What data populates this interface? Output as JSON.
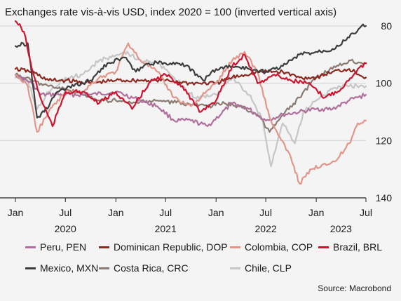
{
  "chart_data": {
    "type": "line",
    "title": "Exchanges rate vis-à-vis USD, index 2020 = 100 (inverted vertical axis)",
    "y_axis": {
      "ticks": [
        80,
        100,
        120,
        140
      ],
      "inverted": true,
      "ylim": [
        140,
        80
      ],
      "position": "right"
    },
    "x_axis": {
      "ticks": [
        {
          "date": "2020-01-01",
          "label": "Jan"
        },
        {
          "date": "2020-07-01",
          "label": "Jul"
        },
        {
          "date": "2021-01-01",
          "label": "Jan"
        },
        {
          "date": "2021-07-01",
          "label": "Jul"
        },
        {
          "date": "2022-01-01",
          "label": "Jan"
        },
        {
          "date": "2022-07-01",
          "label": "Jul"
        },
        {
          "date": "2023-01-01",
          "label": "Jan"
        },
        {
          "date": "2023-07-01",
          "label": "Jul"
        }
      ],
      "years": [
        {
          "date": "2020-07-01",
          "label": "2020"
        },
        {
          "date": "2021-07-01",
          "label": "2021"
        },
        {
          "date": "2022-07-01",
          "label": "2022"
        },
        {
          "date": "2023-04-01",
          "label": "2023"
        }
      ],
      "xlim": [
        "2020-01-01",
        "2023-07-01"
      ]
    },
    "grid": true,
    "legend_position": "bottom",
    "series": [
      {
        "name": "Peru, PEN",
        "color": "#b0709c",
        "dates": [
          "2020-01-01",
          "2020-03-01",
          "2020-04-01",
          "2020-07-01",
          "2020-10-01",
          "2021-01-01",
          "2021-04-01",
          "2021-06-01",
          "2021-08-01",
          "2021-10-01",
          "2021-12-01",
          "2022-03-01",
          "2022-05-01",
          "2022-07-01",
          "2022-09-01",
          "2022-11-01",
          "2023-01-01",
          "2023-03-01",
          "2023-05-01",
          "2023-07-01"
        ],
        "values": [
          97,
          100,
          104,
          104,
          104,
          103,
          106,
          108,
          113,
          113,
          115,
          107,
          109,
          113,
          111,
          110,
          109,
          109,
          106,
          104
        ]
      },
      {
        "name": "Dominican Republic, DOP",
        "color": "#8c2a22",
        "dates": [
          "2020-01-01",
          "2020-03-01",
          "2020-05-01",
          "2020-07-01",
          "2020-10-01",
          "2021-01-01",
          "2021-04-01",
          "2021-07-01",
          "2021-10-01",
          "2022-01-01",
          "2022-03-01",
          "2022-06-01",
          "2022-09-01",
          "2022-11-01",
          "2023-01-01",
          "2023-03-01",
          "2023-05-01",
          "2023-07-01"
        ],
        "values": [
          95,
          96,
          99,
          99,
          100,
          99,
          99,
          99,
          100,
          100,
          98,
          96,
          96,
          98,
          98,
          96,
          95,
          98
        ]
      },
      {
        "name": "Colombia, COP",
        "color": "#e0968b",
        "dates": [
          "2020-01-01",
          "2020-02-15",
          "2020-03-20",
          "2020-05-01",
          "2020-07-01",
          "2020-09-01",
          "2020-11-01",
          "2021-01-01",
          "2021-02-15",
          "2021-04-01",
          "2021-06-01",
          "2021-08-01",
          "2021-10-01",
          "2022-01-01",
          "2022-03-01",
          "2022-04-15",
          "2022-06-01",
          "2022-07-15",
          "2022-08-15",
          "2022-10-01",
          "2022-11-01",
          "2022-12-15",
          "2023-02-01",
          "2023-03-15",
          "2023-05-01",
          "2023-06-01",
          "2023-07-01"
        ],
        "values": [
          97,
          101,
          117,
          110,
          103,
          103,
          98,
          96,
          86,
          92,
          96,
          105,
          108,
          100,
          92,
          89,
          96,
          112,
          118,
          126,
          135,
          130,
          128,
          127,
          121,
          114,
          113
        ]
      },
      {
        "name": "Brazil, BRL",
        "color": "#cc1530",
        "dates": [
          "2020-01-01",
          "2020-02-01",
          "2020-03-01",
          "2020-04-01",
          "2020-05-15",
          "2020-07-01",
          "2020-09-01",
          "2020-11-01",
          "2021-01-01",
          "2021-03-01",
          "2021-05-01",
          "2021-07-01",
          "2021-09-01",
          "2021-11-01",
          "2022-01-01",
          "2022-03-01",
          "2022-04-15",
          "2022-06-01",
          "2022-08-01",
          "2022-10-01",
          "2022-12-01",
          "2023-02-01",
          "2023-04-01",
          "2023-06-01",
          "2023-07-01"
        ],
        "values": [
          78,
          82,
          95,
          105,
          115,
          103,
          103,
          107,
          103,
          109,
          100,
          97,
          101,
          110,
          106,
          94,
          90,
          100,
          97,
          99,
          100,
          105,
          102,
          95,
          93
        ]
      },
      {
        "name": "Mexico, MXN",
        "color": "#3d3d3d",
        "dates": [
          "2020-01-01",
          "2020-02-15",
          "2020-03-20",
          "2020-04-15",
          "2020-06-01",
          "2020-08-01",
          "2020-10-01",
          "2020-12-01",
          "2021-02-01",
          "2021-03-15",
          "2021-05-01",
          "2021-07-01",
          "2021-09-01",
          "2021-11-15",
          "2022-01-01",
          "2022-03-01",
          "2022-05-01",
          "2022-07-01",
          "2022-09-01",
          "2022-11-01",
          "2023-01-01",
          "2023-03-01",
          "2023-05-01",
          "2023-06-15",
          "2023-07-01"
        ],
        "values": [
          87,
          86,
          112,
          110,
          103,
          101,
          99,
          93,
          91,
          96,
          93,
          93,
          93,
          99,
          95,
          94,
          95,
          96,
          94,
          90,
          89,
          88,
          84,
          80,
          80
        ]
      },
      {
        "name": "Costa Rica, CRC",
        "color": "#8a7b72",
        "dates": [
          "2020-01-01",
          "2020-03-01",
          "2020-05-01",
          "2020-07-01",
          "2020-09-01",
          "2020-11-01",
          "2021-01-01",
          "2021-03-01",
          "2021-06-01",
          "2021-09-01",
          "2021-12-01",
          "2022-02-01",
          "2022-04-01",
          "2022-06-01",
          "2022-07-15",
          "2022-09-01",
          "2022-11-01",
          "2023-01-01",
          "2023-03-01",
          "2023-05-01",
          "2023-07-01"
        ],
        "values": [
          97,
          99,
          101,
          102,
          104,
          106,
          106,
          107,
          106,
          107,
          108,
          107,
          108,
          111,
          117,
          111,
          105,
          98,
          95,
          92,
          93
        ]
      },
      {
        "name": "Chile, CLP",
        "color": "#c6c6c6",
        "dates": [
          "2020-01-01",
          "2020-02-15",
          "2020-03-20",
          "2020-05-01",
          "2020-07-01",
          "2020-09-01",
          "2020-11-01",
          "2020-12-15",
          "2021-02-01",
          "2021-04-01",
          "2021-06-01",
          "2021-08-01",
          "2021-10-15",
          "2022-01-01",
          "2022-03-01",
          "2022-05-01",
          "2022-06-20",
          "2022-07-20",
          "2022-09-01",
          "2022-10-15",
          "2022-11-15",
          "2023-01-01",
          "2023-03-01",
          "2023-05-01",
          "2023-07-01"
        ],
        "values": [
          98,
          99,
          109,
          103,
          98,
          97,
          92,
          91,
          89,
          92,
          93,
          98,
          105,
          104,
          98,
          104,
          113,
          129,
          114,
          121,
          110,
          106,
          102,
          101,
          101
        ]
      }
    ]
  },
  "legend": {
    "items": [
      {
        "label": "Peru, PEN",
        "color": "#b0709c"
      },
      {
        "label": "Dominican Republic, DOP",
        "color": "#8c2a22"
      },
      {
        "label": "Colombia, COP",
        "color": "#e0968b"
      },
      {
        "label": "Brazil, BRL",
        "color": "#cc1530"
      },
      {
        "label": "Mexico, MXN",
        "color": "#3d3d3d"
      },
      {
        "label": "Costa Rica, CRC",
        "color": "#8a7b72"
      },
      {
        "label": "Chile, CLP",
        "color": "#c6c6c6"
      }
    ]
  },
  "source": "Source: Macrobond"
}
